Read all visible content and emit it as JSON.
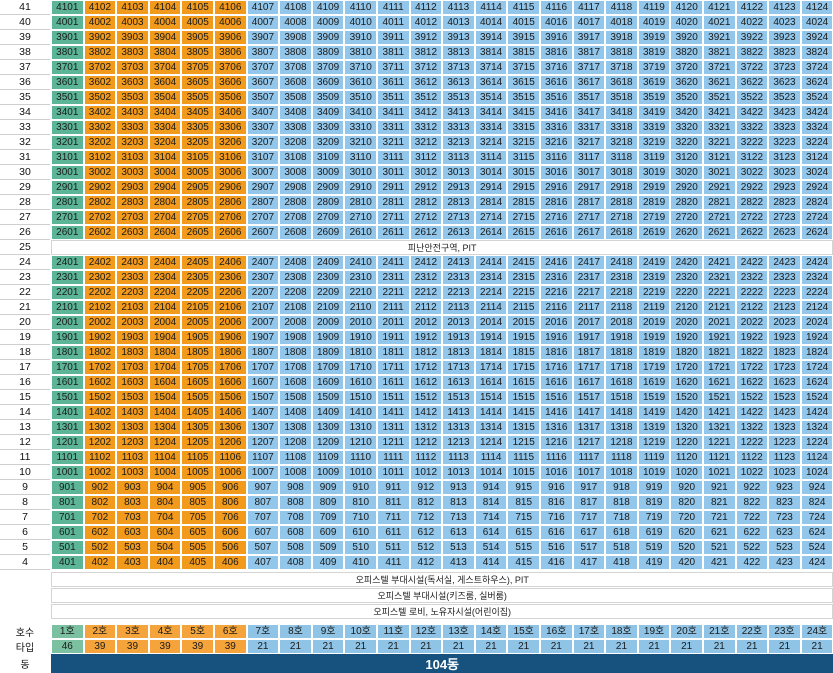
{
  "colors": {
    "type46_floor": "#5cb596",
    "type39_unit": "#f29a1c",
    "type21_unit": "#92c6ea",
    "header_unit46": "#7bc0a1",
    "header_unit39": "#f4a43a",
    "header_unit21": "#8fc4e6",
    "building": "#17527f",
    "note_bg": "#ffffff"
  },
  "upper_floors": [
    41,
    40,
    39,
    38,
    37,
    36,
    35,
    34,
    33,
    32,
    31,
    30,
    29,
    28,
    27,
    26
  ],
  "refuge_floor": {
    "floor": "25",
    "label": "피난안전구역, PIT"
  },
  "lower_floors": [
    24,
    23,
    22,
    21,
    20,
    19,
    18,
    17,
    16,
    15,
    14,
    13,
    12,
    11,
    10,
    9,
    8,
    7,
    6,
    5,
    4
  ],
  "unit_count": 24,
  "unit_type_ranges": {
    "type46": [
      1,
      1
    ],
    "type39": [
      2,
      6
    ],
    "type21": [
      7,
      24
    ]
  },
  "podium_notes": [
    "오피스텔 부대시설(독서실, 게스트하우스), PIT",
    "오피스텔 부대시설(키즈룸, 실버룸)",
    "오피스텔 로비, 노유자시설(어린이집)"
  ],
  "header": {
    "unit_row_label": "호수",
    "type_row_label": "타입",
    "building_row_label": "동",
    "units": [
      "1호",
      "2호",
      "3호",
      "4호",
      "5호",
      "6호",
      "7호",
      "8호",
      "9호",
      "10호",
      "11호",
      "12호",
      "13호",
      "14호",
      "15호",
      "16호",
      "17호",
      "18호",
      "19호",
      "20호",
      "21호",
      "22호",
      "23호",
      "24호"
    ],
    "types": [
      "46",
      "39",
      "39",
      "39",
      "39",
      "39",
      "21",
      "21",
      "21",
      "21",
      "21",
      "21",
      "21",
      "21",
      "21",
      "21",
      "21",
      "21",
      "21",
      "21",
      "21",
      "21",
      "21",
      "21"
    ]
  },
  "building_name": "104동",
  "chart_data": {
    "type": "table",
    "title": "",
    "building": "104동",
    "unit_number_rule": "floor × 100 + unit",
    "floors_upper": [
      41,
      40,
      39,
      38,
      37,
      36,
      35,
      34,
      33,
      32,
      31,
      30,
      29,
      28,
      27,
      26
    ],
    "floors_lower": [
      24,
      23,
      22,
      21,
      20,
      19,
      18,
      17,
      16,
      15,
      14,
      13,
      12,
      11,
      10,
      9,
      8,
      7,
      6,
      5,
      4
    ],
    "units": [
      "1호",
      "2호",
      "3호",
      "4호",
      "5호",
      "6호",
      "7호",
      "8호",
      "9호",
      "10호",
      "11호",
      "12호",
      "13호",
      "14호",
      "15호",
      "16호",
      "17호",
      "18호",
      "19호",
      "20호",
      "21호",
      "22호",
      "23호",
      "24호"
    ],
    "unit_types": [
      46,
      39,
      39,
      39,
      39,
      39,
      21,
      21,
      21,
      21,
      21,
      21,
      21,
      21,
      21,
      21,
      21,
      21,
      21,
      21,
      21,
      21,
      21,
      21
    ],
    "special_rows": [
      {
        "floor": "25",
        "label": "피난안전구역, PIT"
      },
      {
        "label": "오피스텔 부대시설(독서실, 게스트하우스), PIT"
      },
      {
        "label": "오피스텔 부대시설(키즈룸, 실버룸)"
      },
      {
        "label": "오피스텔 로비, 노유자시설(어린이집)"
      }
    ]
  }
}
